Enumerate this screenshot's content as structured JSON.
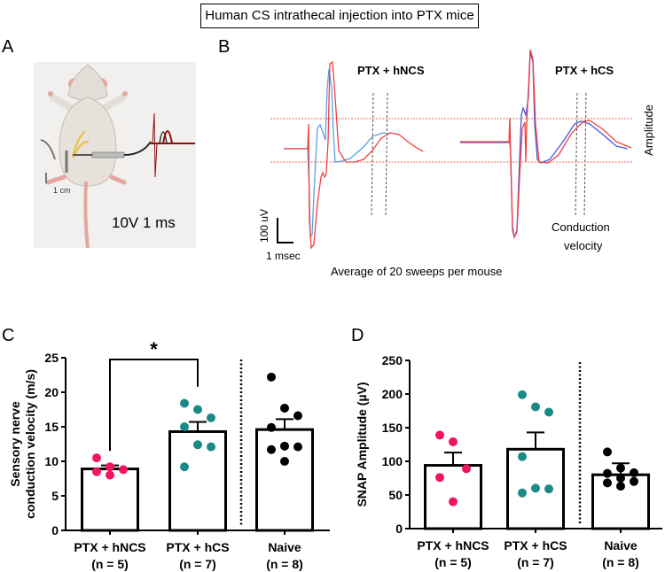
{
  "figure_title": "Human CS intrathecal injection into PTX mice",
  "panel_labels": [
    "A",
    "B",
    "C",
    "D"
  ],
  "panelA": {
    "scale_label": "1 cm",
    "stimulus_label": "10V 1 ms"
  },
  "panelB": {
    "trace_titles": [
      "PTX + hNCS",
      "PTX + hCS"
    ],
    "amplitude_label": "Amplitude",
    "conduction_label_1": "Conduction",
    "conduction_label_2": "velocity",
    "scale_y_label": "100 uV",
    "scale_x_label": "1 msec",
    "caption": "Average of 20 sweeps per mouse",
    "colors": {
      "red": "#f04040",
      "blue": "#4a78e0",
      "lightblue": "#5aa0e0",
      "guide": "#f06060"
    }
  },
  "chart_data": [
    {
      "type": "bar",
      "panel": "C",
      "ylabel_1": "Sensory nerve",
      "ylabel_2": "conduction velocity (m/s)",
      "ylim": [
        0,
        25
      ],
      "yticks": [
        "0",
        "5",
        "10",
        "15",
        "20",
        "25"
      ],
      "categories": [
        {
          "name": "PTX + hNCS",
          "n": "(n = 5)",
          "mean": 8.9,
          "sem_top": 9.4,
          "color": "#f0155e",
          "points": [
            10.5,
            9.2,
            8.8,
            8.5,
            8.0
          ]
        },
        {
          "name": "PTX + hCS",
          "n": "(n = 7)",
          "mean": 14.3,
          "sem_top": 15.7,
          "color": "#1a8a86",
          "points": [
            18.4,
            17.5,
            16.3,
            15.0,
            12.4,
            12.1,
            9.2
          ]
        },
        {
          "name": "Naive",
          "n": "(n = 8)",
          "mean": 14.6,
          "sem_top": 16.1,
          "color": "#000000",
          "points": [
            22.2,
            17.7,
            16.6,
            14.9,
            12.2,
            12.1,
            11.7,
            10.0
          ]
        }
      ],
      "significance": {
        "between": [
          0,
          1
        ],
        "label": "*"
      }
    },
    {
      "type": "bar",
      "panel": "D",
      "ylabel_1": "SNAP Amplitude (µV)",
      "ylim": [
        0,
        250
      ],
      "yticks": [
        "0",
        "50",
        "100",
        "150",
        "200",
        "250"
      ],
      "categories": [
        {
          "name": "PTX + hNCS",
          "n": "(n = 5)",
          "mean": 94,
          "sem_top": 113,
          "color": "#f0155e",
          "points": [
            139,
            129,
            89,
            76,
            40
          ]
        },
        {
          "name": "PTX + hCS",
          "n": "(n = 7)",
          "mean": 118,
          "sem_top": 143,
          "color": "#1a8a86",
          "points": [
            199,
            181,
            173,
            107,
            60,
            59,
            53
          ]
        },
        {
          "name": "Naive",
          "n": "(n = 8)",
          "mean": 80,
          "sem_top": 97,
          "color": "#000000",
          "points": [
            114,
            90,
            83,
            82,
            75,
            70,
            68,
            63
          ]
        }
      ]
    }
  ]
}
